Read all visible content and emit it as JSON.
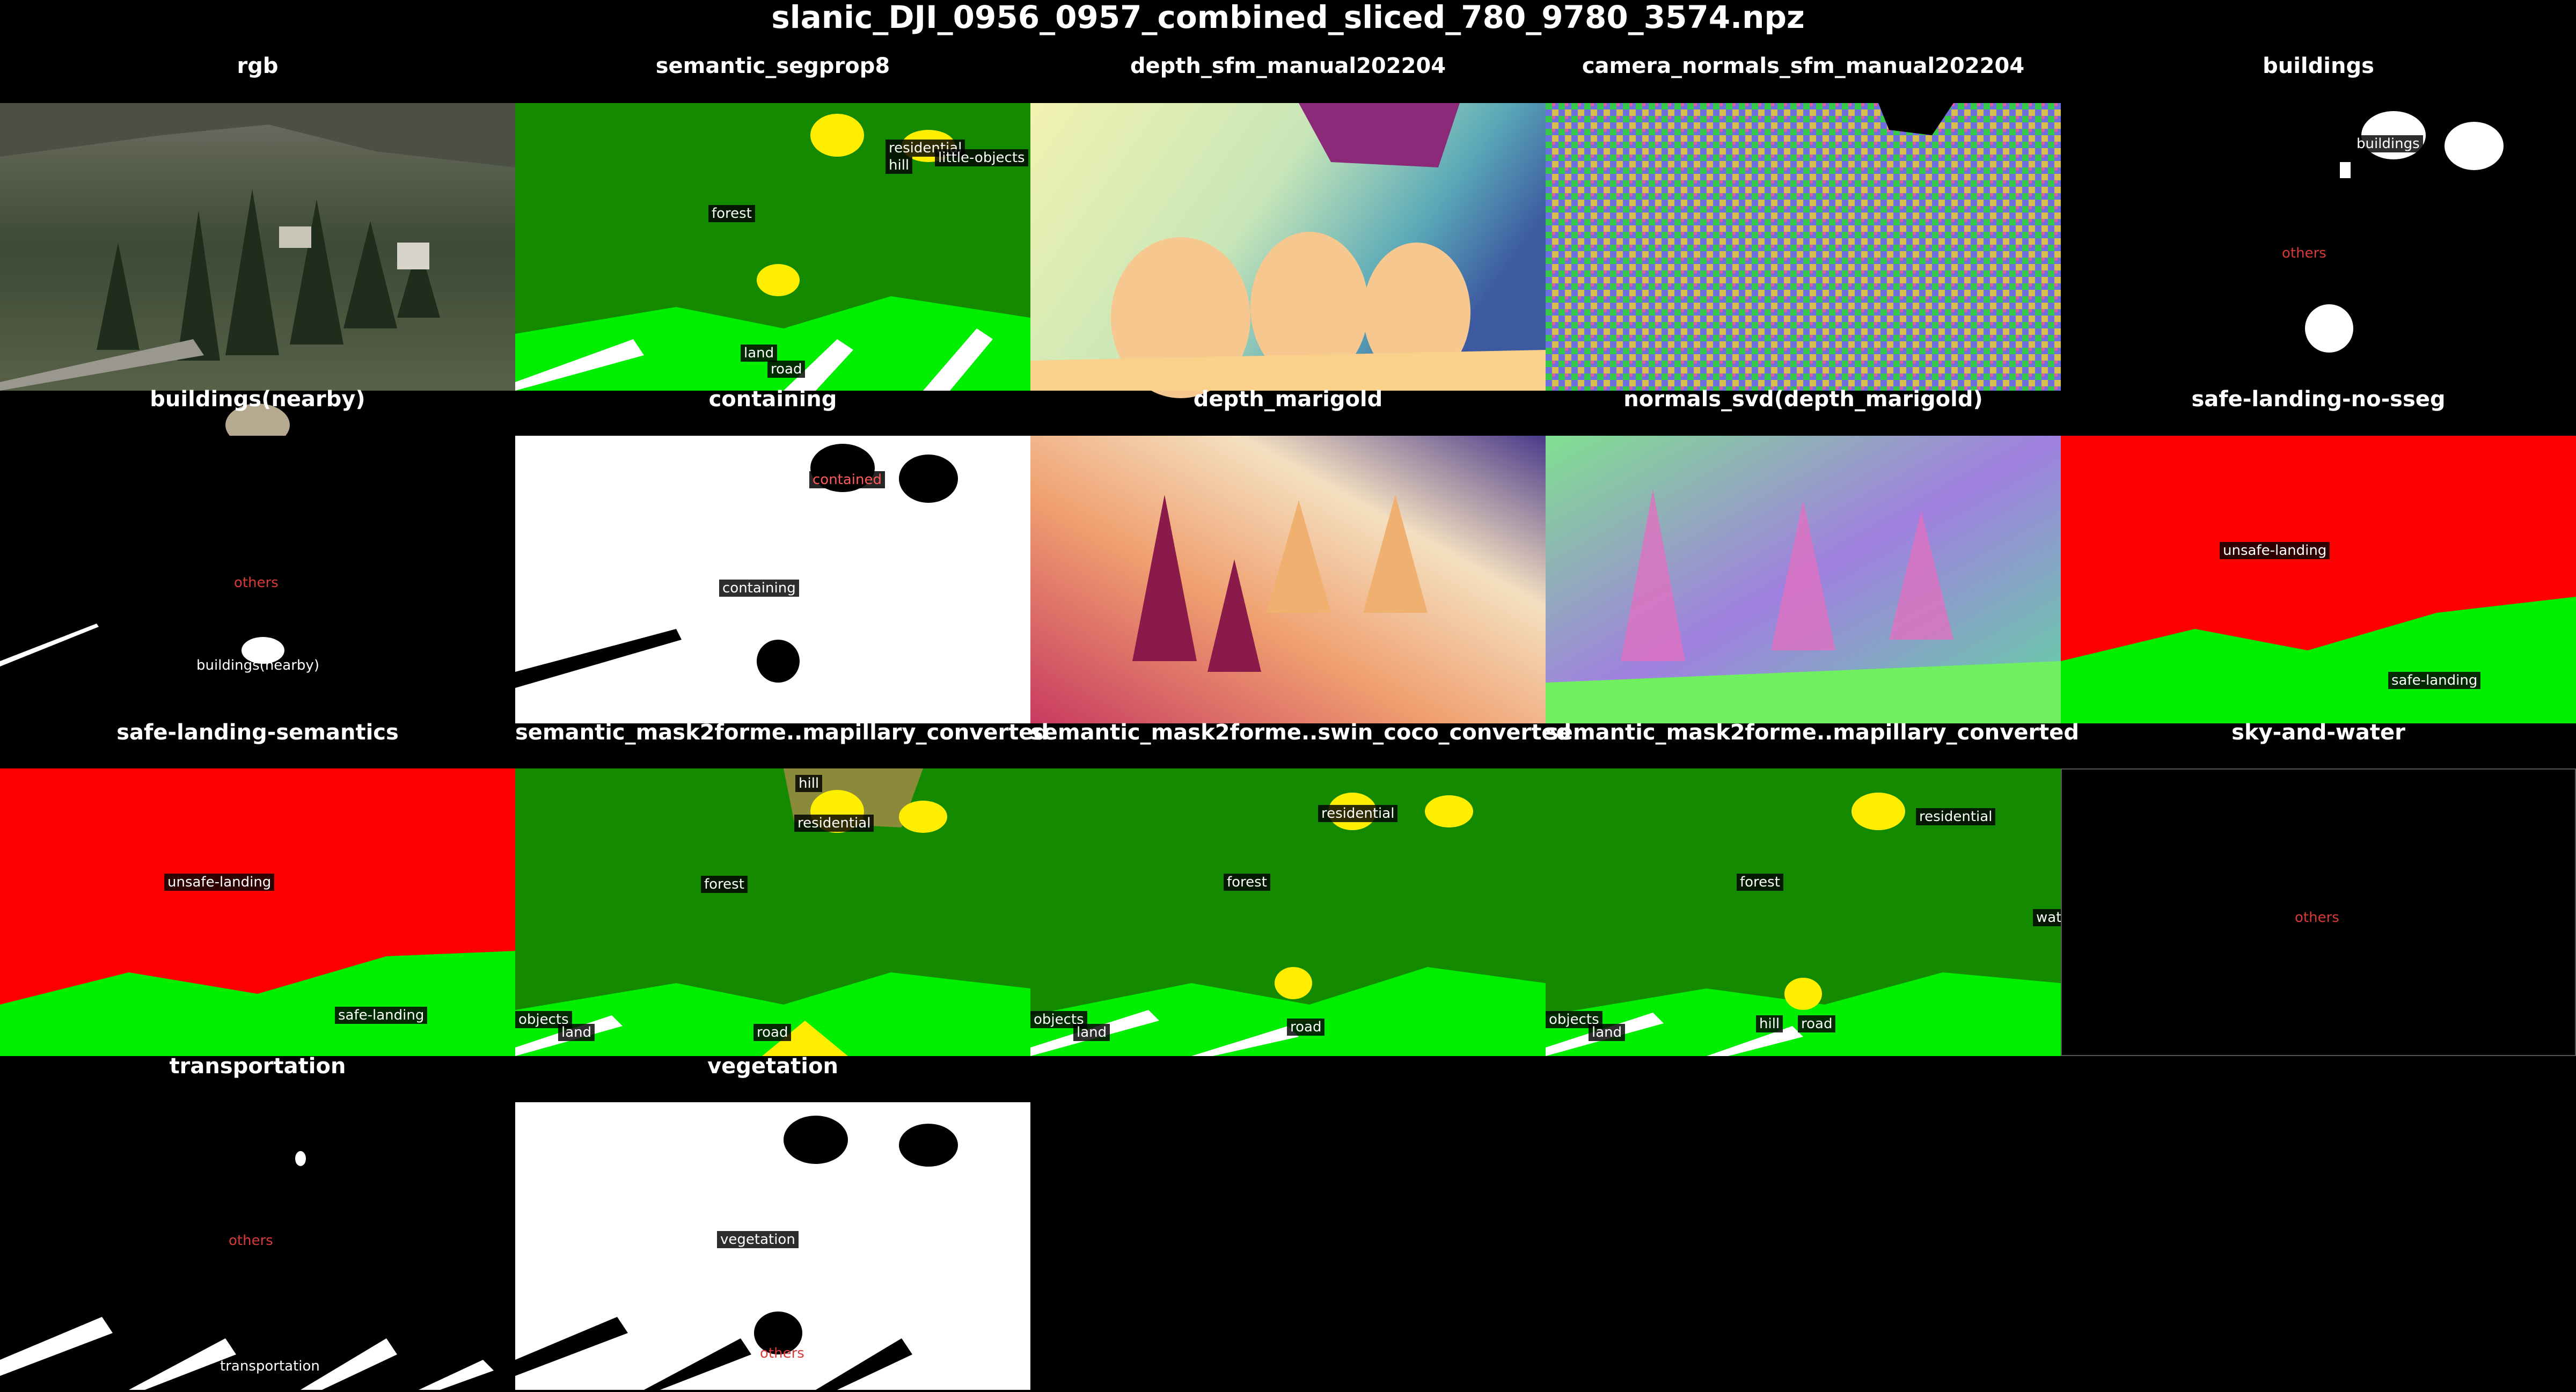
{
  "title": "slanic_DJI_0956_0957_combined_sliced_780_9780_3574.npz",
  "panels": [
    {
      "title": "rgb",
      "labels": []
    },
    {
      "title": "semantic_segprop8",
      "labels": [
        "residential",
        "little-objects",
        "hill",
        "forest",
        "land",
        "road"
      ]
    },
    {
      "title": "depth_sfm_manual202204",
      "labels": []
    },
    {
      "title": "camera_normals_sfm_manual202204",
      "labels": []
    },
    {
      "title": "buildings",
      "labels": [
        "buildings",
        "others"
      ]
    },
    {
      "title": "buildings(nearby)",
      "labels": [
        "others",
        "buildings(nearby)"
      ]
    },
    {
      "title": "containing",
      "labels": [
        "contained",
        "containing"
      ]
    },
    {
      "title": "depth_marigold",
      "labels": []
    },
    {
      "title": "normals_svd(depth_marigold)",
      "labels": []
    },
    {
      "title": "safe-landing-no-sseg",
      "labels": [
        "unsafe-landing",
        "safe-landing"
      ]
    },
    {
      "title": "safe-landing-semantics",
      "labels": [
        "unsafe-landing",
        "safe-landing"
      ]
    },
    {
      "title": "semantic_mask2forme..mapillary_converted",
      "labels": [
        "hill",
        "residential",
        "forest",
        "objects",
        "land",
        "road"
      ]
    },
    {
      "title": "semantic_mask2forme..swin_coco_converted",
      "labels": [
        "residential",
        "forest",
        "objects",
        "land",
        "road"
      ]
    },
    {
      "title": "semantic_mask2forme..mapillary_converted",
      "labels": [
        "residential",
        "forest",
        "wat",
        "objects",
        "land",
        "hill",
        "road"
      ]
    },
    {
      "title": "sky-and-water",
      "labels": [
        "others"
      ]
    },
    {
      "title": "transportation",
      "labels": [
        "others",
        "transportation"
      ]
    },
    {
      "title": "vegetation",
      "labels": [
        "vegetation",
        "others"
      ]
    }
  ],
  "colors": {
    "background": "#000000",
    "forest": "#138a00",
    "land": "#00ee00",
    "residential": "#ffee00",
    "road": "#ffffff",
    "hill": "#8a8a3a",
    "unsafe": "#ff0000",
    "safe": "#00ee00",
    "others_text": "#d83a3a"
  }
}
